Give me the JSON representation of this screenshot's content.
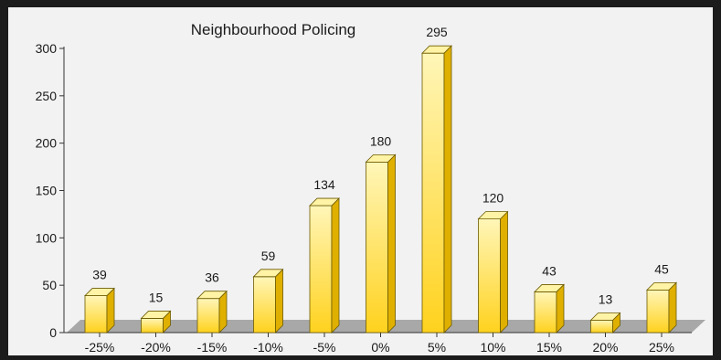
{
  "chart_data": {
    "type": "bar",
    "title": "Neighbourhood Policing",
    "xlabel": "",
    "ylabel": "",
    "categories": [
      "-25%",
      "-20%",
      "-15%",
      "-10%",
      "-5%",
      "0%",
      "5%",
      "10%",
      "15%",
      "20%",
      "25%"
    ],
    "values": [
      39,
      15,
      36,
      59,
      134,
      180,
      295,
      120,
      43,
      13,
      45
    ],
    "ylim": [
      0,
      300
    ],
    "yticks": [
      "0",
      "50",
      "100",
      "150",
      "200",
      "250",
      "300"
    ],
    "grid": false,
    "legend": "none",
    "style": "3d",
    "colors": {
      "bar_top": "#fff3a6",
      "bar_front_light": "#fff6b8",
      "bar_front_dark": "#ffd21e",
      "bar_side": "#e0b000",
      "bar_outline": "#6b5a00",
      "floor": "#a8a8a8",
      "frame_bg": "#f2f2f2",
      "outer_bg": "#1c1c1c"
    }
  }
}
